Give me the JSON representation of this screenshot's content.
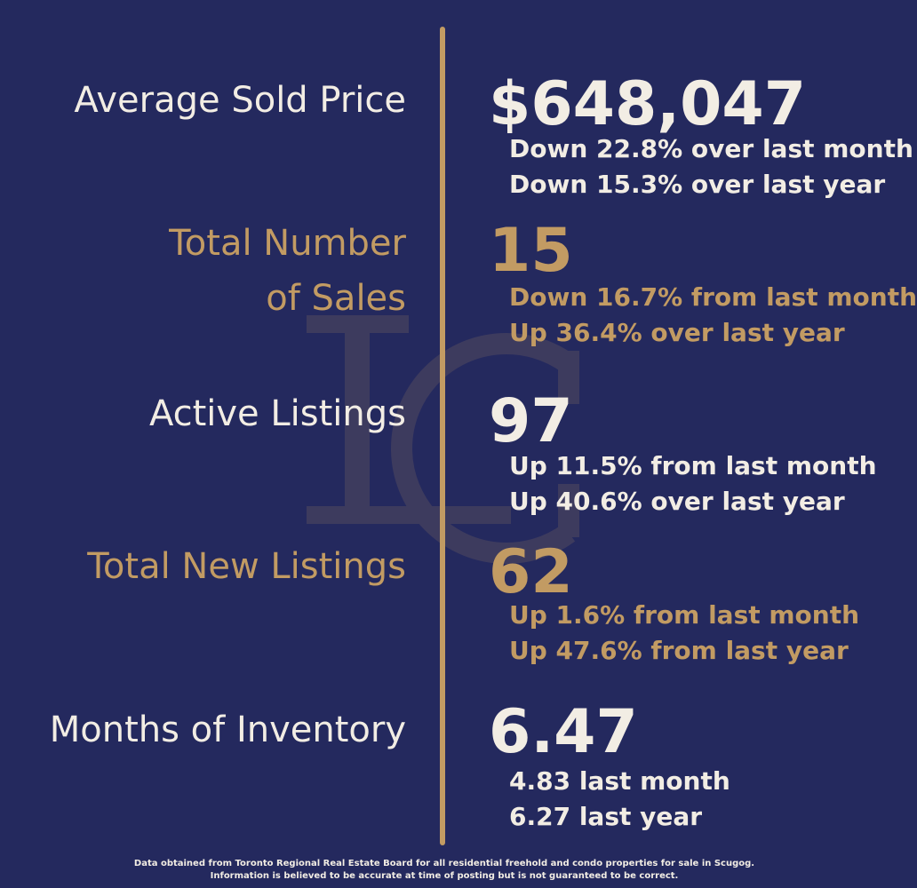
{
  "colors": {
    "background": "#24295e",
    "accent_gold": "#c29b63",
    "text_light": "#f2ede4"
  },
  "stats": [
    {
      "label": "Average Sold Price",
      "value": "$648,047",
      "notes": [
        "Down 22.8% over last month",
        "Down 15.3% over last year"
      ],
      "color": "light"
    },
    {
      "label": "Total Number\nof Sales",
      "value": "15",
      "notes": [
        "Down 16.7% from last month",
        "Up 36.4% over last year"
      ],
      "color": "gold"
    },
    {
      "label": "Active Listings",
      "value": "97",
      "notes": [
        "Up 11.5% from last month",
        "Up 40.6% over last year"
      ],
      "color": "light"
    },
    {
      "label": "Total New Listings",
      "value": "62",
      "notes": [
        "Up 1.6% from last month",
        "Up 47.6% from last year"
      ],
      "color": "gold"
    },
    {
      "label": "Months of Inventory",
      "value": "6.47",
      "notes": [
        "4.83 last month",
        "6.27 last year"
      ],
      "color": "light"
    }
  ],
  "footer": {
    "line1": "Data obtained from Toronto Regional Real Estate Board for all residential freehold and condo properties for sale in Scugog.",
    "line2": "Information is believed to be accurate at time of posting but is not guaranteed to be correct."
  },
  "watermark_icon": "lc-monogram-icon"
}
